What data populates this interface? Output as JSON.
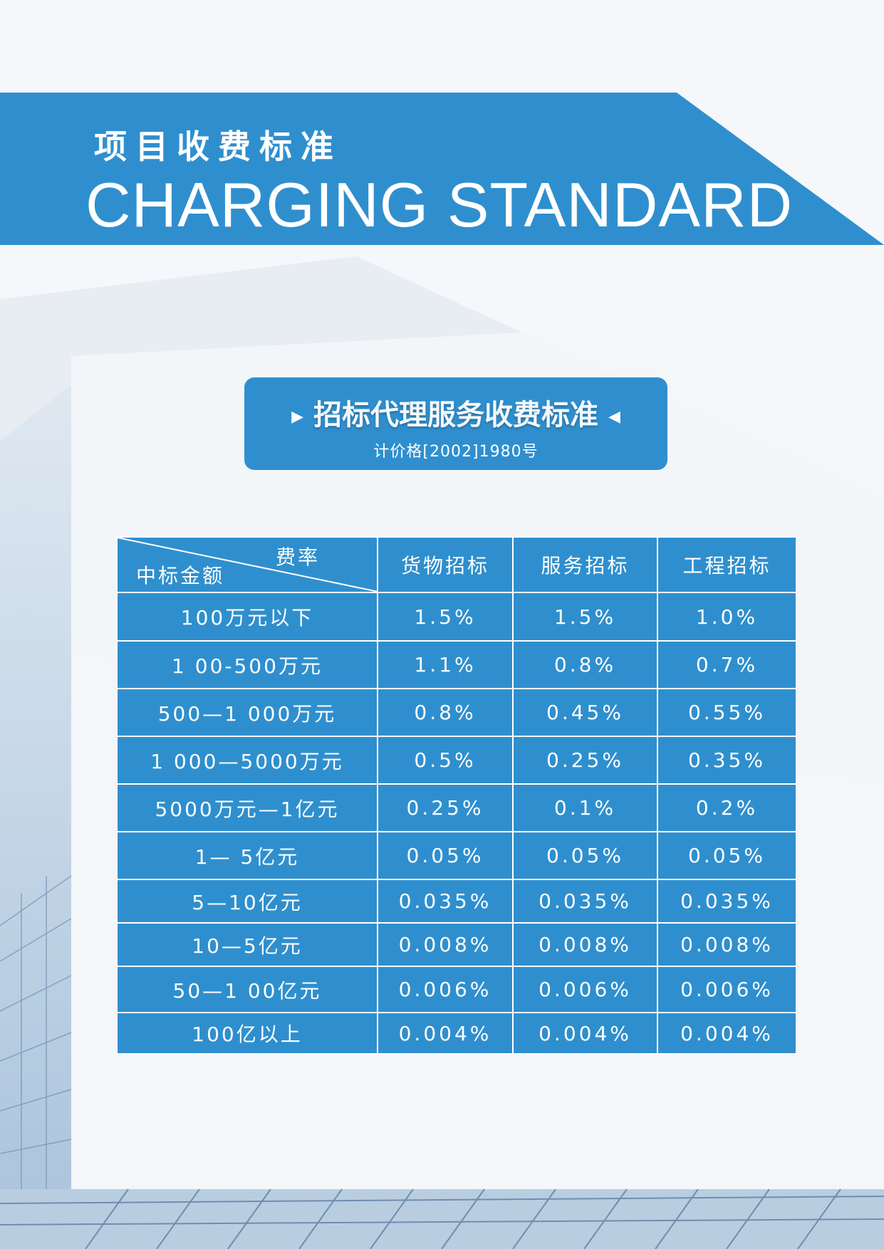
{
  "header": {
    "title_cn": "项目收费标准",
    "title_en": "CHARGING STANDARD"
  },
  "section": {
    "title": "招标代理服务收费标准",
    "document_no": "计价格[2002]1980号"
  },
  "table": {
    "corner_top": "费率",
    "corner_bottom": "中标金额",
    "columns": [
      "货物招标",
      "服务招标",
      "工程招标"
    ],
    "rows": [
      {
        "amount": "100万元以下",
        "values": [
          "1.5%",
          "1.5%",
          "1.0%"
        ]
      },
      {
        "amount": "1 00-500万元",
        "values": [
          "1.1%",
          "0.8%",
          "0.7%"
        ]
      },
      {
        "amount": "500—1 000万元",
        "values": [
          "0.8%",
          "0.45%",
          "0.55%"
        ]
      },
      {
        "amount": "1 000—5000万元",
        "values": [
          "0.5%",
          "0.25%",
          "0.35%"
        ]
      },
      {
        "amount": "5000万元—1亿元",
        "values": [
          "0.25%",
          "0.1%",
          "0.2%"
        ]
      },
      {
        "amount": "1— 5亿元",
        "values": [
          "0.05%",
          "0.05%",
          "0.05%"
        ]
      },
      {
        "amount": "5—10亿元",
        "values": [
          "0.035%",
          "0.035%",
          "0.035%"
        ]
      },
      {
        "amount": "10—5亿元",
        "values": [
          "0.008%",
          "0.008%",
          "0.008%"
        ]
      },
      {
        "amount": "50—1 00亿元",
        "values": [
          "0.006%",
          "0.006%",
          "0.006%"
        ]
      },
      {
        "amount": "100亿以上",
        "values": [
          "0.004%",
          "0.004%",
          "0.004%"
        ]
      }
    ]
  },
  "colors": {
    "brand_blue": "#2f8fce",
    "background": "#eef2f6"
  }
}
